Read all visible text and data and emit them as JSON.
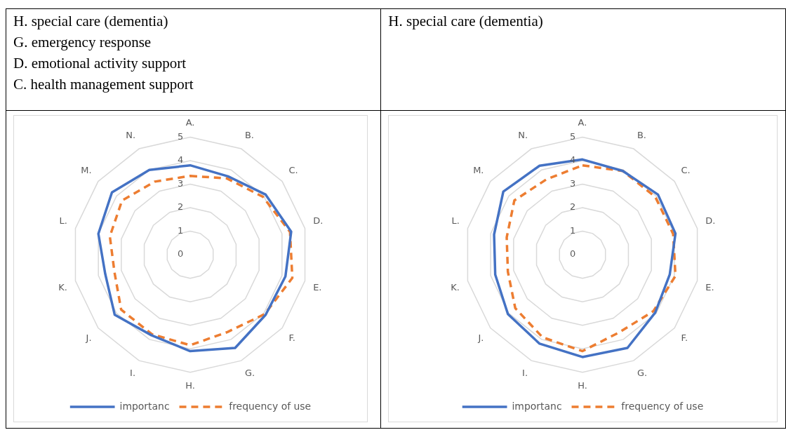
{
  "chart_data": [
    {
      "type": "other",
      "annotations": [
        "H. special care (dementia)",
        "G. emergency response",
        "D. emotional activity support",
        "C. health management support"
      ]
    },
    {
      "type": "other",
      "annotations": [
        "H. special care (dementia)"
      ]
    },
    {
      "type": "radar",
      "categories": [
        "A.",
        "B.",
        "C.",
        "D.",
        "E.",
        "F.",
        "G.",
        "H.",
        "I.",
        "J.",
        "K.",
        "L.",
        "M.",
        "N."
      ],
      "ylim": [
        0,
        5
      ],
      "yticks": [
        0,
        1,
        2,
        3,
        4,
        5
      ],
      "grid": true,
      "legend": "bottom",
      "marker": "none",
      "series": [
        {
          "name": "importanc",
          "color": "#4472c4",
          "line_style": "solid",
          "values": [
            3.8,
            3.7,
            4.1,
            4.4,
            4.15,
            4.1,
            4.4,
            4.1,
            3.8,
            4.1,
            3.7,
            4.0,
            4.25,
            4.0
          ]
        },
        {
          "name": "frequency of use",
          "color": "#ed7d31",
          "line_style": "dashed",
          "values": [
            3.35,
            3.6,
            3.95,
            4.35,
            4.45,
            4.05,
            3.65,
            3.85,
            3.75,
            3.75,
            3.3,
            3.5,
            3.7,
            3.45
          ]
        }
      ]
    },
    {
      "type": "radar",
      "categories": [
        "A.",
        "B.",
        "C.",
        "D.",
        "E.",
        "F.",
        "G.",
        "H.",
        "I.",
        "J.",
        "K.",
        "L.",
        "M.",
        "N."
      ],
      "ylim": [
        0,
        5
      ],
      "yticks": [
        0,
        1,
        2,
        3,
        4,
        5
      ],
      "grid": true,
      "legend": "bottom",
      "marker": "none",
      "series": [
        {
          "name": "importanc",
          "color": "#4472c4",
          "line_style": "solid",
          "values": [
            4.05,
            3.95,
            4.1,
            4.05,
            3.8,
            3.95,
            4.4,
            4.35,
            4.2,
            4.05,
            3.8,
            3.85,
            4.3,
            4.2
          ]
        },
        {
          "name": "frequency of use",
          "color": "#ed7d31",
          "line_style": "dashed",
          "values": [
            3.8,
            3.95,
            3.95,
            3.95,
            4.05,
            3.85,
            3.65,
            4.1,
            3.9,
            3.65,
            3.25,
            3.3,
            3.7,
            3.55
          ]
        }
      ]
    }
  ]
}
